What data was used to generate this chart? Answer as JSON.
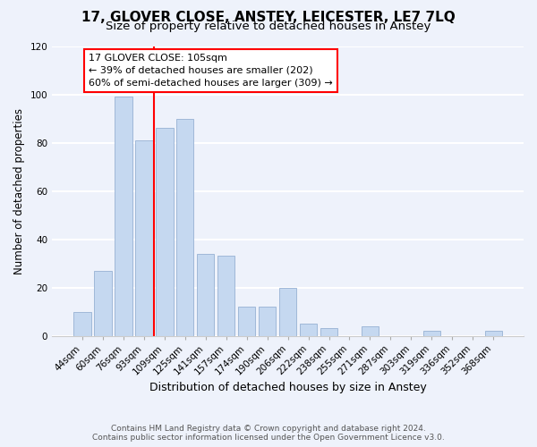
{
  "title": "17, GLOVER CLOSE, ANSTEY, LEICESTER, LE7 7LQ",
  "subtitle": "Size of property relative to detached houses in Anstey",
  "xlabel": "Distribution of detached houses by size in Anstey",
  "ylabel": "Number of detached properties",
  "bar_labels": [
    "44sqm",
    "60sqm",
    "76sqm",
    "93sqm",
    "109sqm",
    "125sqm",
    "141sqm",
    "157sqm",
    "174sqm",
    "190sqm",
    "206sqm",
    "222sqm",
    "238sqm",
    "255sqm",
    "271sqm",
    "287sqm",
    "303sqm",
    "319sqm",
    "336sqm",
    "352sqm",
    "368sqm"
  ],
  "bar_values": [
    10,
    27,
    99,
    81,
    86,
    90,
    34,
    33,
    12,
    12,
    20,
    5,
    3,
    0,
    4,
    0,
    0,
    2,
    0,
    0,
    2
  ],
  "bar_color": "#c5d8f0",
  "bar_edge_color": "#a0b8d8",
  "vline_color": "red",
  "vline_idx": 3.5,
  "annotation_text": "17 GLOVER CLOSE: 105sqm\n← 39% of detached houses are smaller (202)\n60% of semi-detached houses are larger (309) →",
  "annotation_box_edgecolor": "red",
  "annotation_box_facecolor": "white",
  "ylim": [
    0,
    120
  ],
  "yticks": [
    0,
    20,
    40,
    60,
    80,
    100,
    120
  ],
  "footer_line1": "Contains HM Land Registry data © Crown copyright and database right 2024.",
  "footer_line2": "Contains public sector information licensed under the Open Government Licence v3.0.",
  "background_color": "#eef2fb",
  "grid_color": "white",
  "title_fontsize": 11,
  "subtitle_fontsize": 9.5,
  "annotation_fontsize": 8,
  "ylabel_fontsize": 8.5,
  "xlabel_fontsize": 9,
  "tick_fontsize": 7.5,
  "footer_fontsize": 6.5
}
